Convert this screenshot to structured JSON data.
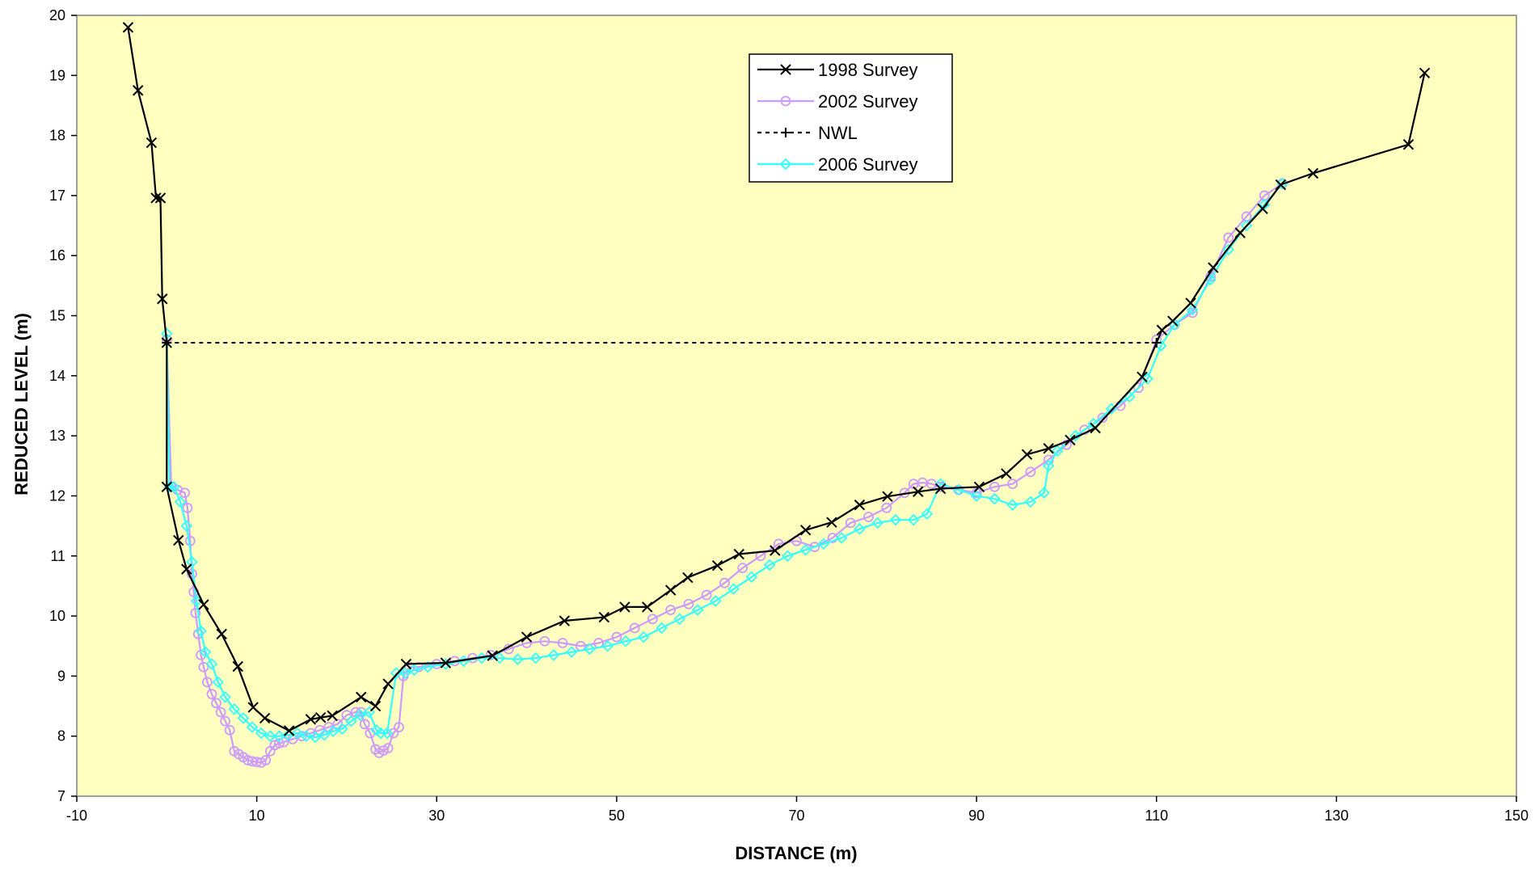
{
  "chart_data": {
    "type": "line",
    "title": "",
    "xlabel": "DISTANCE (m)",
    "ylabel": "REDUCED LEVEL (m)",
    "xlim": [
      -10,
      150
    ],
    "ylim": [
      7,
      20
    ],
    "xticks": [
      -10,
      10,
      30,
      50,
      70,
      90,
      110,
      130,
      150
    ],
    "yticks": [
      7,
      8,
      9,
      10,
      11,
      12,
      13,
      14,
      15,
      16,
      17,
      18,
      19,
      20
    ],
    "grid": false,
    "plot_background": "#FFFFC0",
    "legend_position": "top-center",
    "series": [
      {
        "name": "1998 Survey",
        "color": "#000000",
        "marker": "x",
        "line": "solid",
        "x": [
          -4.3,
          -3.2,
          -1.7,
          -1.2,
          -0.7,
          -0.5,
          0,
          0,
          1.3,
          2.2,
          4.1,
          6.1,
          7.9,
          9.6,
          10.9,
          13.6,
          16.0,
          17.1,
          18.4,
          21.6,
          23.2,
          24.6,
          26.6,
          31.0,
          36.2,
          40.0,
          44.2,
          48.6,
          50.9,
          53.4,
          56.0,
          57.9,
          61.2,
          63.6,
          67.6,
          71.0,
          73.9,
          77.0,
          80.1,
          83.5,
          86.0,
          90.3,
          93.3,
          95.6,
          98.0,
          100.4,
          103.2,
          108.4,
          110.6,
          111.8,
          113.8,
          116.3,
          119.3,
          121.8,
          123.8,
          127.4,
          138.0,
          139.8
        ],
        "y": [
          19.8,
          18.75,
          17.88,
          16.96,
          16.96,
          15.28,
          14.55,
          12.15,
          11.26,
          10.78,
          10.19,
          9.7,
          9.16,
          8.48,
          8.3,
          8.09,
          8.28,
          8.31,
          8.34,
          8.65,
          8.5,
          8.87,
          9.2,
          9.22,
          9.34,
          9.65,
          9.92,
          9.98,
          10.15,
          10.15,
          10.43,
          10.64,
          10.84,
          11.03,
          11.09,
          11.43,
          11.56,
          11.85,
          11.99,
          12.07,
          12.12,
          12.15,
          12.37,
          12.69,
          12.79,
          12.93,
          13.13,
          13.98,
          14.76,
          14.91,
          15.21,
          15.8,
          16.38,
          16.78,
          17.18,
          17.37,
          17.85,
          19.04
        ]
      },
      {
        "name": "2002 Survey",
        "color": "#CC99FF",
        "marker": "circle",
        "line": "solid",
        "x": [
          0,
          0.5,
          1.2,
          2.0,
          2.3,
          2.6,
          2.8,
          3.0,
          3.2,
          3.5,
          3.8,
          4.1,
          4.5,
          5.0,
          5.5,
          6.0,
          6.5,
          7.0,
          7.5,
          8.0,
          8.5,
          9.0,
          9.5,
          10.0,
          10.5,
          11.0,
          11.5,
          12.0,
          12.5,
          13.0,
          14.0,
          15.0,
          16.0,
          17.0,
          18.0,
          19.0,
          20.0,
          21.0,
          21.6,
          22.0,
          22.6,
          23.2,
          23.6,
          24.1,
          24.6,
          25.2,
          25.8,
          26.3,
          27.0,
          28.0,
          30.0,
          32.0,
          34.0,
          36.0,
          38.0,
          40.0,
          42.0,
          44.0,
          46.0,
          48.0,
          50.0,
          52.0,
          54.0,
          56.0,
          58.0,
          60.0,
          62.0,
          64.0,
          66.0,
          68.0,
          70.0,
          72.0,
          74.0,
          76.0,
          78.0,
          80.0,
          82.0,
          83.0,
          84.0,
          85.0,
          86.0,
          88.0,
          90.0,
          92.0,
          94.0,
          96.0,
          98.0,
          100.0,
          102.0,
          104.0,
          106.0,
          108.0,
          110.0,
          112.0,
          114.0,
          116.0,
          118.0,
          120.0,
          122.0,
          124.0
        ],
        "y": [
          14.6,
          12.15,
          12.1,
          12.05,
          11.8,
          11.25,
          10.7,
          10.4,
          10.05,
          9.7,
          9.35,
          9.15,
          8.9,
          8.7,
          8.55,
          8.4,
          8.25,
          8.1,
          7.75,
          7.7,
          7.65,
          7.6,
          7.58,
          7.57,
          7.56,
          7.6,
          7.75,
          7.85,
          7.88,
          7.9,
          7.95,
          8.0,
          8.05,
          8.1,
          8.15,
          8.2,
          8.35,
          8.4,
          8.4,
          8.2,
          8.05,
          7.78,
          7.72,
          7.76,
          7.8,
          8.05,
          8.15,
          9.0,
          9.15,
          9.15,
          9.2,
          9.25,
          9.3,
          9.35,
          9.45,
          9.55,
          9.58,
          9.55,
          9.5,
          9.55,
          9.65,
          9.8,
          9.95,
          10.1,
          10.2,
          10.35,
          10.55,
          10.8,
          11.0,
          11.2,
          11.25,
          11.15,
          11.3,
          11.55,
          11.65,
          11.8,
          12.05,
          12.2,
          12.22,
          12.2,
          12.15,
          12.1,
          12.05,
          12.15,
          12.2,
          12.4,
          12.6,
          12.85,
          13.1,
          13.3,
          13.5,
          13.8,
          14.6,
          14.85,
          15.05,
          15.65,
          16.3,
          16.65,
          17.0,
          17.2
        ]
      },
      {
        "name": "NWL",
        "color": "#000000",
        "marker": "plus",
        "line": "dashed",
        "x": [
          0,
          110
        ],
        "y": [
          14.55,
          14.55
        ]
      },
      {
        "name": "2006 Survey",
        "color": "#33FFFF",
        "marker": "diamond",
        "line": "solid",
        "x": [
          0,
          0.3,
          0.8,
          1.5,
          2.2,
          2.8,
          3.3,
          3.8,
          4.3,
          5.0,
          5.7,
          6.5,
          7.5,
          8.5,
          9.5,
          10.5,
          11.5,
          12.5,
          13.5,
          14.5,
          15.5,
          16.5,
          17.5,
          18.5,
          19.5,
          20.5,
          21.5,
          22.5,
          23.3,
          23.8,
          24.5,
          25.5,
          26.5,
          27.5,
          29.0,
          31.0,
          33.0,
          35.0,
          37.0,
          39.0,
          41.0,
          43.0,
          45.0,
          47.0,
          49.0,
          51.0,
          53.0,
          55.0,
          57.0,
          59.0,
          61.0,
          63.0,
          65.0,
          67.0,
          69.0,
          71.0,
          73.0,
          75.0,
          77.0,
          79.0,
          81.0,
          83.0,
          84.5,
          86.0,
          88.0,
          90.0,
          92.0,
          94.0,
          96.0,
          97.5,
          98.0,
          99.0,
          101.0,
          103.0,
          105.0,
          107.0,
          109.0,
          110.5,
          112.0,
          114.0,
          116.0,
          118.0,
          120.0,
          122.0,
          124.0
        ],
        "y": [
          14.7,
          12.15,
          12.15,
          11.9,
          11.5,
          10.9,
          10.25,
          9.75,
          9.4,
          9.2,
          8.9,
          8.65,
          8.45,
          8.3,
          8.15,
          8.05,
          8.0,
          8.0,
          8.02,
          8.05,
          8.0,
          7.98,
          8.02,
          8.08,
          8.12,
          8.25,
          8.35,
          8.4,
          8.1,
          8.05,
          8.05,
          9.05,
          9.05,
          9.1,
          9.15,
          9.2,
          9.25,
          9.3,
          9.3,
          9.28,
          9.3,
          9.35,
          9.4,
          9.45,
          9.5,
          9.58,
          9.65,
          9.8,
          9.95,
          10.1,
          10.25,
          10.45,
          10.65,
          10.85,
          11.0,
          11.1,
          11.2,
          11.3,
          11.45,
          11.55,
          11.6,
          11.6,
          11.7,
          12.2,
          12.1,
          12.0,
          11.95,
          11.85,
          11.9,
          12.05,
          12.5,
          12.75,
          13.0,
          13.2,
          13.45,
          13.65,
          13.95,
          14.5,
          14.85,
          15.1,
          15.6,
          16.1,
          16.5,
          16.85,
          17.2
        ]
      }
    ]
  }
}
